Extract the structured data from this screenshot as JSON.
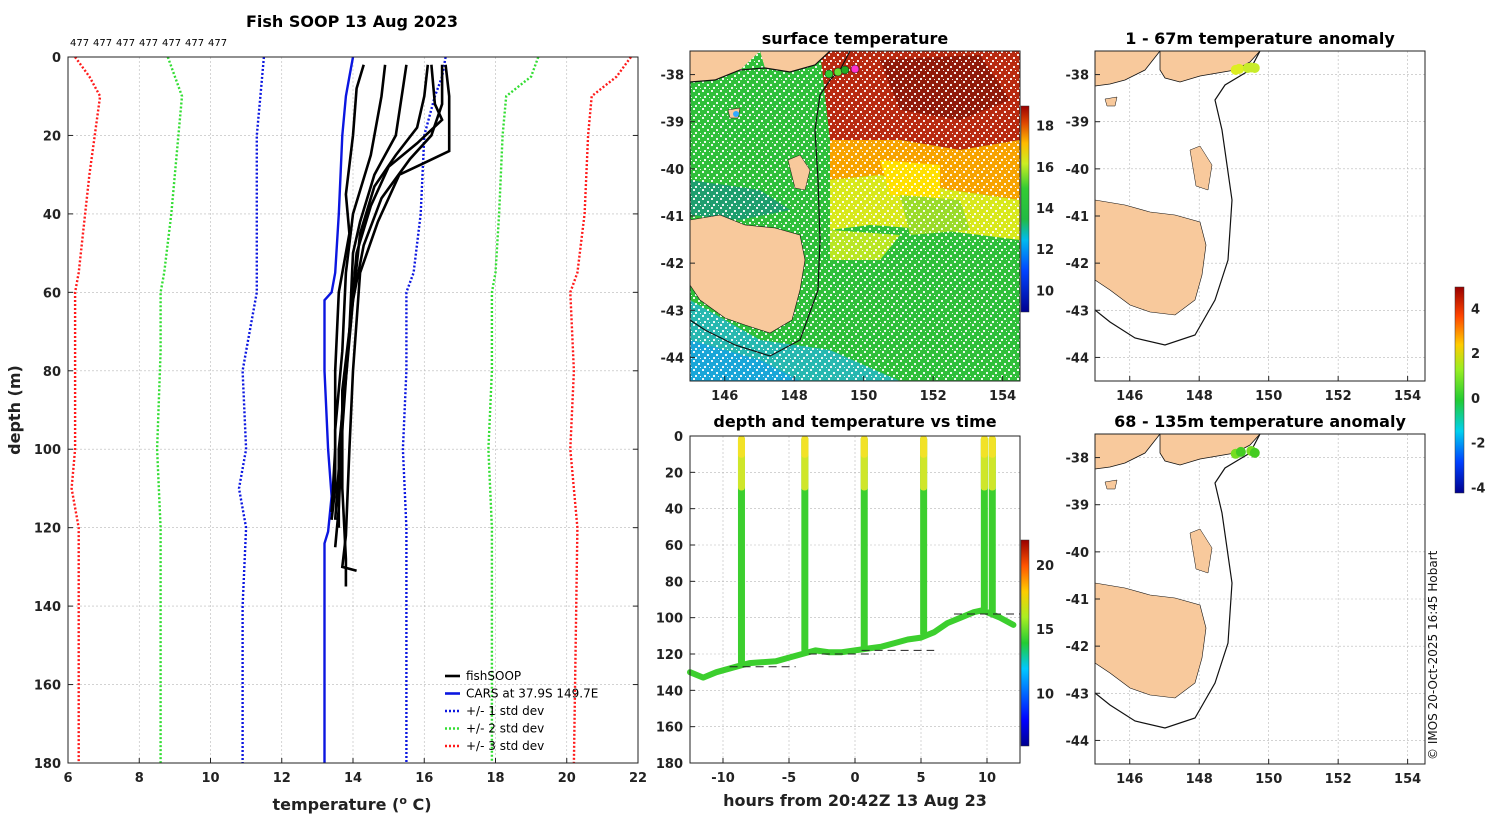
{
  "chart_data": [
    {
      "id": "profile",
      "type": "line",
      "title": "Fish SOOP 13 Aug 2023",
      "xlabel": "temperature (",
      "xlabel_sup": "o",
      "xlabel_end": " C)",
      "ylabel": "depth (m)",
      "xlim": [
        6,
        22
      ],
      "ylim": [
        180,
        0
      ],
      "x_ticks": [
        6,
        8,
        10,
        12,
        14,
        16,
        18,
        20,
        22
      ],
      "y_ticks": [
        0,
        20,
        40,
        60,
        80,
        100,
        120,
        140,
        160,
        180
      ],
      "top_labels": [
        "477",
        "477",
        "477",
        "477",
        "477",
        "477",
        "477"
      ],
      "legend": [
        {
          "label": "fishSOOP",
          "color": "#000000",
          "dash": false
        },
        {
          "label": "CARS at 37.9S 149.7E",
          "color": "#0b16e0",
          "dash": false
        },
        {
          "label": "+/- 1 std dev",
          "color": "#0b16e0",
          "dash": true
        },
        {
          "label": "+/- 2 std dev",
          "color": "#33dd33",
          "dash": true
        },
        {
          "label": "+/- 3 std dev",
          "color": "#ff1a1a",
          "dash": true
        }
      ],
      "series": [
        {
          "name": "CARS at 37.9S 149.7E",
          "color": "#0b16e0",
          "dash": false,
          "points": [
            [
              14.0,
              0
            ],
            [
              13.9,
              5
            ],
            [
              13.8,
              10
            ],
            [
              13.7,
              20
            ],
            [
              13.6,
              40
            ],
            [
              13.5,
              55
            ],
            [
              13.4,
              60
            ],
            [
              13.2,
              62
            ],
            [
              13.2,
              80
            ],
            [
              13.3,
              100
            ],
            [
              13.4,
              112
            ],
            [
              13.3,
              121
            ],
            [
              13.2,
              124
            ],
            [
              13.2,
              180
            ]
          ]
        },
        {
          "name": "-1 std dev",
          "color": "#0b16e0",
          "dash": true,
          "points": [
            [
              11.5,
              0
            ],
            [
              11.4,
              10
            ],
            [
              11.3,
              20
            ],
            [
              11.3,
              40
            ],
            [
              11.3,
              60
            ],
            [
              11.0,
              75
            ],
            [
              10.9,
              80
            ],
            [
              11.0,
              100
            ],
            [
              10.8,
              110
            ],
            [
              11.0,
              120
            ],
            [
              10.9,
              140
            ],
            [
              10.9,
              180
            ]
          ]
        },
        {
          "name": "+1 std dev",
          "color": "#0b16e0",
          "dash": true,
          "points": [
            [
              16.6,
              0
            ],
            [
              16.5,
              5
            ],
            [
              16.3,
              10
            ],
            [
              16.0,
              20
            ],
            [
              15.9,
              40
            ],
            [
              15.7,
              55
            ],
            [
              15.5,
              60
            ],
            [
              15.5,
              80
            ],
            [
              15.4,
              100
            ],
            [
              15.5,
              120
            ],
            [
              15.5,
              180
            ]
          ]
        },
        {
          "name": "-2 std dev",
          "color": "#33dd33",
          "dash": true,
          "points": [
            [
              8.8,
              0
            ],
            [
              9.0,
              5
            ],
            [
              9.2,
              10
            ],
            [
              9.1,
              20
            ],
            [
              8.9,
              40
            ],
            [
              8.7,
              55
            ],
            [
              8.6,
              60
            ],
            [
              8.6,
              75
            ],
            [
              8.5,
              100
            ],
            [
              8.6,
              120
            ],
            [
              8.6,
              180
            ]
          ]
        },
        {
          "name": "+2 std dev",
          "color": "#33dd33",
          "dash": true,
          "points": [
            [
              19.2,
              0
            ],
            [
              19.0,
              5
            ],
            [
              18.3,
              10
            ],
            [
              18.2,
              20
            ],
            [
              18.1,
              40
            ],
            [
              18.0,
              55
            ],
            [
              17.9,
              60
            ],
            [
              17.9,
              80
            ],
            [
              17.8,
              100
            ],
            [
              17.9,
              120
            ],
            [
              17.9,
              180
            ]
          ]
        },
        {
          "name": "-3 std dev",
          "color": "#ff1a1a",
          "dash": true,
          "points": [
            [
              6.2,
              0
            ],
            [
              6.6,
              5
            ],
            [
              6.9,
              10
            ],
            [
              6.6,
              30
            ],
            [
              6.3,
              55
            ],
            [
              6.2,
              60
            ],
            [
              6.2,
              100
            ],
            [
              6.1,
              110
            ],
            [
              6.3,
              120
            ],
            [
              6.3,
              180
            ]
          ]
        },
        {
          "name": "+3 std dev",
          "color": "#ff1a1a",
          "dash": true,
          "points": [
            [
              21.8,
              0
            ],
            [
              21.4,
              5
            ],
            [
              20.7,
              10
            ],
            [
              20.6,
              20
            ],
            [
              20.5,
              40
            ],
            [
              20.3,
              55
            ],
            [
              20.1,
              60
            ],
            [
              20.2,
              80
            ],
            [
              20.1,
              100
            ],
            [
              20.3,
              120
            ],
            [
              20.2,
              180
            ]
          ]
        },
        {
          "name": "fishSOOP cast 1",
          "color": "#000000",
          "dash": false,
          "points": [
            [
              14.3,
              2
            ],
            [
              14.1,
              8
            ],
            [
              14.0,
              20
            ],
            [
              13.8,
              35
            ],
            [
              13.9,
              45
            ],
            [
              13.6,
              60
            ],
            [
              13.5,
              80
            ],
            [
              13.5,
              100
            ],
            [
              13.4,
              116
            ]
          ]
        },
        {
          "name": "fishSOOP cast 2",
          "color": "#000000",
          "dash": false,
          "points": [
            [
              14.9,
              2
            ],
            [
              14.8,
              10
            ],
            [
              14.5,
              25
            ],
            [
              14.0,
              40
            ],
            [
              13.8,
              55
            ],
            [
              13.7,
              75
            ],
            [
              13.5,
              95
            ],
            [
              13.5,
              110
            ],
            [
              13.4,
              118
            ]
          ]
        },
        {
          "name": "fishSOOP cast 3",
          "color": "#000000",
          "dash": false,
          "points": [
            [
              15.5,
              2
            ],
            [
              15.4,
              8
            ],
            [
              15.2,
              20
            ],
            [
              14.6,
              30
            ],
            [
              14.2,
              42
            ],
            [
              14.0,
              50
            ],
            [
              13.9,
              70
            ],
            [
              13.7,
              90
            ],
            [
              13.6,
              105
            ],
            [
              13.5,
              118
            ]
          ]
        },
        {
          "name": "fishSOOP cast 4",
          "color": "#000000",
          "dash": false,
          "points": [
            [
              16.1,
              2
            ],
            [
              16.0,
              10
            ],
            [
              15.8,
              18
            ],
            [
              15.2,
              25
            ],
            [
              14.6,
              33
            ],
            [
              14.2,
              45
            ],
            [
              14.0,
              62
            ],
            [
              13.8,
              82
            ],
            [
              13.6,
              100
            ],
            [
              13.6,
              120
            ]
          ]
        },
        {
          "name": "fishSOOP cast 5",
          "color": "#000000",
          "dash": false,
          "points": [
            [
              16.2,
              2
            ],
            [
              16.3,
              12
            ],
            [
              16.5,
              16
            ],
            [
              15.8,
              22
            ],
            [
              15.0,
              28
            ],
            [
              14.5,
              38
            ],
            [
              14.1,
              50
            ],
            [
              13.9,
              70
            ],
            [
              13.7,
              95
            ],
            [
              13.6,
              115
            ],
            [
              13.5,
              125
            ]
          ]
        },
        {
          "name": "fishSOOP cast 6",
          "color": "#000000",
          "dash": false,
          "points": [
            [
              16.6,
              2
            ],
            [
              16.7,
              10
            ],
            [
              16.7,
              24
            ],
            [
              16.0,
              27
            ],
            [
              15.3,
              30
            ],
            [
              14.7,
              42
            ],
            [
              14.2,
              55
            ],
            [
              14.0,
              80
            ],
            [
              13.9,
              100
            ],
            [
              13.8,
              122
            ],
            [
              13.7,
              130
            ],
            [
              14.1,
              131
            ]
          ]
        },
        {
          "name": "fishSOOP cast 7",
          "color": "#000000",
          "dash": false,
          "points": [
            [
              16.5,
              2
            ],
            [
              16.5,
              12
            ],
            [
              16.2,
              20
            ],
            [
              15.6,
              26
            ],
            [
              14.8,
              36
            ],
            [
              14.3,
              48
            ],
            [
              14.0,
              62
            ],
            [
              13.7,
              85
            ],
            [
              13.7,
              110
            ],
            [
              13.8,
              128
            ],
            [
              13.8,
              135
            ]
          ]
        }
      ]
    },
    {
      "id": "sst_map",
      "type": "heatmap",
      "title": "surface temperature",
      "xlim": [
        145,
        154.5
      ],
      "ylim": [
        -44.5,
        -37.5
      ],
      "x_ticks": [
        146,
        148,
        150,
        152,
        154
      ],
      "y_ticks": [
        -38,
        -39,
        -40,
        -41,
        -42,
        -43,
        -44
      ],
      "colorbar_ticks": [
        18,
        16,
        14,
        12,
        10
      ],
      "colorbar_range": [
        9,
        19
      ]
    },
    {
      "id": "depth_time",
      "type": "scatter",
      "title": "depth and temperature vs time",
      "xlabel": "hours from 20:42Z 13 Aug 23",
      "xlim": [
        -12.5,
        12.5
      ],
      "ylim": [
        180,
        0
      ],
      "x_ticks": [
        -10,
        -5,
        0,
        5,
        10
      ],
      "y_ticks": [
        0,
        20,
        40,
        60,
        80,
        100,
        120,
        140,
        160,
        180
      ],
      "colorbar_ticks": [
        20,
        15,
        10
      ],
      "colorbar_range": [
        6,
        22
      ],
      "cast_times_h": [
        -8.6,
        -3.8,
        0.7,
        5.2,
        9.8,
        10.4
      ],
      "bottom_track": [
        [
          -12.5,
          130
        ],
        [
          -11.5,
          133
        ],
        [
          -10.5,
          130
        ],
        [
          -9,
          127
        ],
        [
          -8,
          125
        ],
        [
          -6,
          124
        ],
        [
          -5,
          122
        ],
        [
          -4,
          120
        ],
        [
          -3,
          118
        ],
        [
          -2,
          119
        ],
        [
          -1,
          119
        ],
        [
          0,
          118
        ],
        [
          1,
          117
        ],
        [
          2,
          116
        ],
        [
          3,
          114
        ],
        [
          4,
          112
        ],
        [
          5,
          111
        ],
        [
          6,
          108
        ],
        [
          7,
          103
        ],
        [
          8,
          100
        ],
        [
          9,
          97
        ],
        [
          9.6,
          96
        ],
        [
          10,
          97
        ],
        [
          11,
          100
        ],
        [
          12,
          104
        ]
      ]
    },
    {
      "id": "anom_upper",
      "type": "scatter",
      "title": "1 - 67m temperature anomaly",
      "xlim": [
        145,
        154.5
      ],
      "ylim": [
        -44.5,
        -37.5
      ],
      "x_ticks": [
        146,
        148,
        150,
        152,
        154
      ],
      "y_ticks": [
        -38,
        -39,
        -40,
        -41,
        -42,
        -43,
        -44
      ],
      "points": [
        [
          149.05,
          -37.9
        ],
        [
          149.15,
          -37.88
        ],
        [
          149.4,
          -37.86
        ],
        [
          149.5,
          -37.85
        ],
        [
          149.6,
          -37.86
        ]
      ]
    },
    {
      "id": "anom_lower",
      "type": "scatter",
      "title": "68 - 135m temperature anomaly",
      "xlim": [
        145,
        154.5
      ],
      "ylim": [
        -44.5,
        -37.5
      ],
      "x_ticks": [
        146,
        148,
        150,
        152,
        154
      ],
      "y_ticks": [
        -38,
        -39,
        -40,
        -41,
        -42,
        -43,
        -44
      ],
      "points": [
        [
          149.05,
          -37.92
        ],
        [
          149.2,
          -37.88
        ],
        [
          149.5,
          -37.86
        ],
        [
          149.6,
          -37.9
        ]
      ],
      "colorbar_ticks": [
        4,
        2,
        0,
        -2,
        -4
      ],
      "colorbar_range": [
        -4.2,
        5
      ]
    }
  ],
  "credit": "© IMOS 20-Oct-2025 16:45 Hobart"
}
